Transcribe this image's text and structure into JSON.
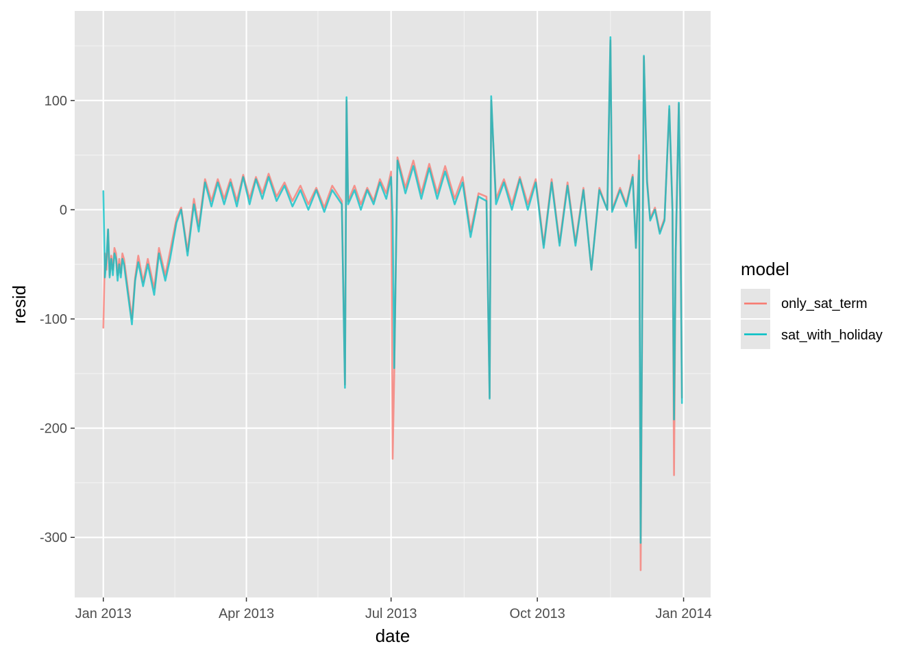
{
  "chart_data": {
    "type": "line",
    "xlabel": "date",
    "ylabel": "resid",
    "x_range": [
      "2012-12-14",
      "2014-01-18"
    ],
    "ylim": [
      -355,
      182
    ],
    "x_ticks": [
      {
        "date": "2013-01-01",
        "label": "Jan 2013"
      },
      {
        "date": "2013-04-01",
        "label": "Apr 2013"
      },
      {
        "date": "2013-07-01",
        "label": "Jul 2013"
      },
      {
        "date": "2013-10-01",
        "label": "Oct 2013"
      },
      {
        "date": "2014-01-01",
        "label": "Jan 2014"
      }
    ],
    "x_minor_ticks": [
      "2013-02-15",
      "2013-05-16",
      "2013-08-16",
      "2013-11-16"
    ],
    "y_ticks": [
      {
        "value": 100,
        "label": "100"
      },
      {
        "value": 0,
        "label": "0"
      },
      {
        "value": -100,
        "label": "-100"
      },
      {
        "value": -200,
        "label": "-200"
      },
      {
        "value": -300,
        "label": "-300"
      }
    ],
    "y_minor_ticks": [
      150,
      50,
      -50,
      -150,
      -250
    ],
    "panel_background": "#e5e5e5",
    "grid": true,
    "legend": {
      "title": "model",
      "position": "right"
    },
    "series": [
      {
        "name": "only_sat_term",
        "color": "#f8766d",
        "points": [
          [
            "2013-01-01",
            -108
          ],
          [
            "2013-01-02",
            -40
          ],
          [
            "2013-01-03",
            -55
          ],
          [
            "2013-01-04",
            -18
          ],
          [
            "2013-01-05",
            -60
          ],
          [
            "2013-01-06",
            -42
          ],
          [
            "2013-01-07",
            -55
          ],
          [
            "2013-01-08",
            -35
          ],
          [
            "2013-01-09",
            -40
          ],
          [
            "2013-01-10",
            -60
          ],
          [
            "2013-01-11",
            -45
          ],
          [
            "2013-01-12",
            -58
          ],
          [
            "2013-01-13",
            -40
          ],
          [
            "2013-01-14",
            -45
          ],
          [
            "2013-01-19",
            -100
          ],
          [
            "2013-01-21",
            -62
          ],
          [
            "2013-01-23",
            -42
          ],
          [
            "2013-01-26",
            -66
          ],
          [
            "2013-01-29",
            -45
          ],
          [
            "2013-02-02",
            -72
          ],
          [
            "2013-02-05",
            -35
          ],
          [
            "2013-02-09",
            -60
          ],
          [
            "2013-02-12",
            -38
          ],
          [
            "2013-02-16",
            -8
          ],
          [
            "2013-02-19",
            2
          ],
          [
            "2013-02-23",
            -38
          ],
          [
            "2013-02-27",
            10
          ],
          [
            "2013-03-02",
            -15
          ],
          [
            "2013-03-06",
            28
          ],
          [
            "2013-03-10",
            8
          ],
          [
            "2013-03-14",
            28
          ],
          [
            "2013-03-18",
            10
          ],
          [
            "2013-03-22",
            28
          ],
          [
            "2013-03-26",
            8
          ],
          [
            "2013-03-30",
            32
          ],
          [
            "2013-04-03",
            10
          ],
          [
            "2013-04-07",
            30
          ],
          [
            "2013-04-11",
            15
          ],
          [
            "2013-04-15",
            33
          ],
          [
            "2013-04-20",
            12
          ],
          [
            "2013-04-25",
            25
          ],
          [
            "2013-04-30",
            8
          ],
          [
            "2013-05-05",
            22
          ],
          [
            "2013-05-10",
            5
          ],
          [
            "2013-05-15",
            20
          ],
          [
            "2013-05-20",
            2
          ],
          [
            "2013-05-25",
            22
          ],
          [
            "2013-05-31",
            8
          ],
          [
            "2013-06-02",
            -160
          ],
          [
            "2013-06-03",
            100
          ],
          [
            "2013-06-04",
            8
          ],
          [
            "2013-06-08",
            22
          ],
          [
            "2013-06-12",
            5
          ],
          [
            "2013-06-16",
            20
          ],
          [
            "2013-06-20",
            8
          ],
          [
            "2013-06-24",
            28
          ],
          [
            "2013-06-28",
            15
          ],
          [
            "2013-07-01",
            35
          ],
          [
            "2013-07-02",
            -228
          ],
          [
            "2013-07-03",
            -150
          ],
          [
            "2013-07-05",
            48
          ],
          [
            "2013-07-10",
            20
          ],
          [
            "2013-07-15",
            45
          ],
          [
            "2013-07-20",
            15
          ],
          [
            "2013-07-25",
            42
          ],
          [
            "2013-07-30",
            15
          ],
          [
            "2013-08-04",
            40
          ],
          [
            "2013-08-10",
            10
          ],
          [
            "2013-08-15",
            30
          ],
          [
            "2013-08-20",
            -20
          ],
          [
            "2013-08-25",
            15
          ],
          [
            "2013-08-30",
            12
          ],
          [
            "2013-09-01",
            -172
          ],
          [
            "2013-09-02",
            100
          ],
          [
            "2013-09-05",
            10
          ],
          [
            "2013-09-10",
            28
          ],
          [
            "2013-09-15",
            5
          ],
          [
            "2013-09-20",
            30
          ],
          [
            "2013-09-25",
            5
          ],
          [
            "2013-09-30",
            28
          ],
          [
            "2013-10-05",
            -32
          ],
          [
            "2013-10-10",
            28
          ],
          [
            "2013-10-15",
            -30
          ],
          [
            "2013-10-20",
            25
          ],
          [
            "2013-10-25",
            -30
          ],
          [
            "2013-10-30",
            20
          ],
          [
            "2013-11-04",
            -55
          ],
          [
            "2013-11-09",
            20
          ],
          [
            "2013-11-14",
            0
          ],
          [
            "2013-11-16",
            155
          ],
          [
            "2013-11-17",
            0
          ],
          [
            "2013-11-22",
            20
          ],
          [
            "2013-11-26",
            5
          ],
          [
            "2013-11-30",
            32
          ],
          [
            "2013-12-02",
            -35
          ],
          [
            "2013-12-04",
            50
          ],
          [
            "2013-12-05",
            -330
          ],
          [
            "2013-12-07",
            140
          ],
          [
            "2013-12-09",
            28
          ],
          [
            "2013-12-11",
            -8
          ],
          [
            "2013-12-14",
            2
          ],
          [
            "2013-12-17",
            -20
          ],
          [
            "2013-12-20",
            -8
          ],
          [
            "2013-12-23",
            92
          ],
          [
            "2013-12-25",
            0
          ],
          [
            "2013-12-26",
            -243
          ],
          [
            "2013-12-27",
            -40
          ],
          [
            "2013-12-29",
            97
          ],
          [
            "2013-12-30",
            -5
          ],
          [
            "2013-12-31",
            -172
          ]
        ]
      },
      {
        "name": "sat_with_holiday",
        "color": "#00bfc4",
        "points": [
          [
            "2013-01-01",
            17
          ],
          [
            "2013-01-02",
            -62
          ],
          [
            "2013-01-03",
            -45
          ],
          [
            "2013-01-04",
            -18
          ],
          [
            "2013-01-05",
            -62
          ],
          [
            "2013-01-06",
            -45
          ],
          [
            "2013-01-07",
            -60
          ],
          [
            "2013-01-08",
            -40
          ],
          [
            "2013-01-09",
            -45
          ],
          [
            "2013-01-10",
            -65
          ],
          [
            "2013-01-11",
            -50
          ],
          [
            "2013-01-12",
            -62
          ],
          [
            "2013-01-13",
            -45
          ],
          [
            "2013-01-14",
            -50
          ],
          [
            "2013-01-19",
            -105
          ],
          [
            "2013-01-21",
            -65
          ],
          [
            "2013-01-23",
            -48
          ],
          [
            "2013-01-26",
            -70
          ],
          [
            "2013-01-29",
            -50
          ],
          [
            "2013-02-02",
            -78
          ],
          [
            "2013-02-05",
            -40
          ],
          [
            "2013-02-09",
            -65
          ],
          [
            "2013-02-12",
            -45
          ],
          [
            "2013-02-16",
            -12
          ],
          [
            "2013-02-19",
            0
          ],
          [
            "2013-02-23",
            -42
          ],
          [
            "2013-02-27",
            5
          ],
          [
            "2013-03-02",
            -20
          ],
          [
            "2013-03-06",
            25
          ],
          [
            "2013-03-10",
            3
          ],
          [
            "2013-03-14",
            25
          ],
          [
            "2013-03-18",
            5
          ],
          [
            "2013-03-22",
            25
          ],
          [
            "2013-03-26",
            3
          ],
          [
            "2013-03-30",
            30
          ],
          [
            "2013-04-03",
            5
          ],
          [
            "2013-04-07",
            28
          ],
          [
            "2013-04-11",
            10
          ],
          [
            "2013-04-15",
            30
          ],
          [
            "2013-04-20",
            8
          ],
          [
            "2013-04-25",
            22
          ],
          [
            "2013-04-30",
            3
          ],
          [
            "2013-05-05",
            18
          ],
          [
            "2013-05-10",
            0
          ],
          [
            "2013-05-15",
            18
          ],
          [
            "2013-05-20",
            -2
          ],
          [
            "2013-05-25",
            18
          ],
          [
            "2013-05-31",
            5
          ],
          [
            "2013-06-02",
            -163
          ],
          [
            "2013-06-03",
            103
          ],
          [
            "2013-06-04",
            5
          ],
          [
            "2013-06-08",
            18
          ],
          [
            "2013-06-12",
            0
          ],
          [
            "2013-06-16",
            18
          ],
          [
            "2013-06-20",
            5
          ],
          [
            "2013-06-24",
            25
          ],
          [
            "2013-06-28",
            10
          ],
          [
            "2013-07-01",
            30
          ],
          [
            "2013-07-02",
            -8
          ],
          [
            "2013-07-03",
            -145
          ],
          [
            "2013-07-05",
            45
          ],
          [
            "2013-07-10",
            15
          ],
          [
            "2013-07-15",
            40
          ],
          [
            "2013-07-20",
            10
          ],
          [
            "2013-07-25",
            38
          ],
          [
            "2013-07-30",
            10
          ],
          [
            "2013-08-04",
            35
          ],
          [
            "2013-08-10",
            5
          ],
          [
            "2013-08-15",
            25
          ],
          [
            "2013-08-20",
            -25
          ],
          [
            "2013-08-25",
            12
          ],
          [
            "2013-08-30",
            8
          ],
          [
            "2013-09-01",
            -173
          ],
          [
            "2013-09-02",
            104
          ],
          [
            "2013-09-05",
            5
          ],
          [
            "2013-09-10",
            25
          ],
          [
            "2013-09-15",
            0
          ],
          [
            "2013-09-20",
            28
          ],
          [
            "2013-09-25",
            0
          ],
          [
            "2013-09-30",
            25
          ],
          [
            "2013-10-05",
            -35
          ],
          [
            "2013-10-10",
            25
          ],
          [
            "2013-10-15",
            -33
          ],
          [
            "2013-10-20",
            22
          ],
          [
            "2013-10-25",
            -33
          ],
          [
            "2013-10-30",
            18
          ],
          [
            "2013-11-04",
            -55
          ],
          [
            "2013-11-09",
            18
          ],
          [
            "2013-11-14",
            0
          ],
          [
            "2013-11-16",
            158
          ],
          [
            "2013-11-17",
            -2
          ],
          [
            "2013-11-22",
            18
          ],
          [
            "2013-11-26",
            3
          ],
          [
            "2013-11-30",
            30
          ],
          [
            "2013-12-02",
            -35
          ],
          [
            "2013-12-04",
            45
          ],
          [
            "2013-12-05",
            -305
          ],
          [
            "2013-12-07",
            141
          ],
          [
            "2013-12-09",
            25
          ],
          [
            "2013-12-11",
            -10
          ],
          [
            "2013-12-14",
            0
          ],
          [
            "2013-12-17",
            -22
          ],
          [
            "2013-12-20",
            -10
          ],
          [
            "2013-12-23",
            95
          ],
          [
            "2013-12-25",
            0
          ],
          [
            "2013-12-26",
            -192
          ],
          [
            "2013-12-27",
            -40
          ],
          [
            "2013-12-29",
            98
          ],
          [
            "2013-12-30",
            -5
          ],
          [
            "2013-12-31",
            -177
          ]
        ]
      }
    ]
  }
}
